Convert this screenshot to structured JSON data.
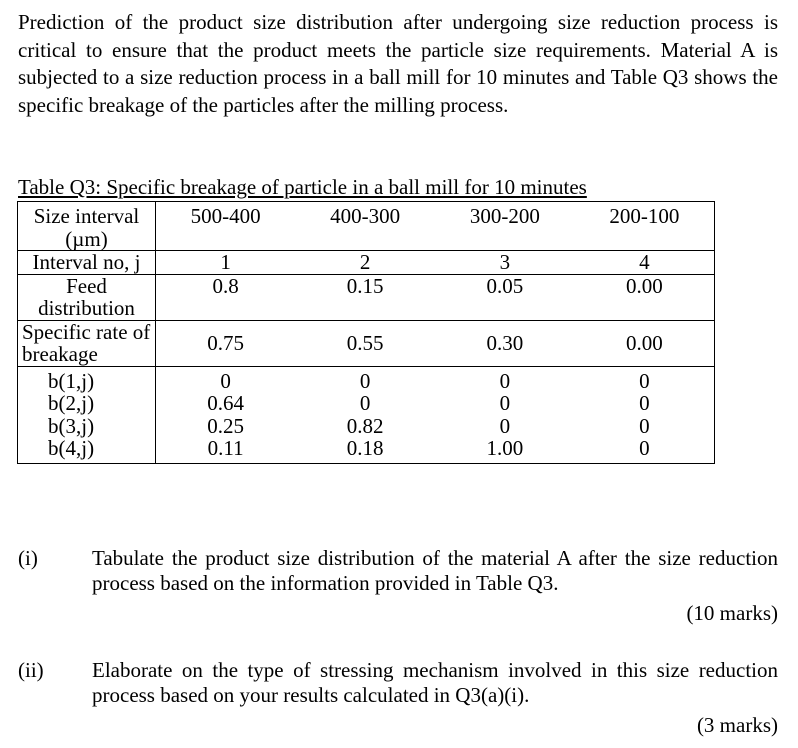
{
  "intro": "Prediction of the product size distribution after undergoing size reduction process is critical to ensure that the product meets the particle size requirements. Material A is subjected to a size reduction process in a ball mill for 10 minutes and Table Q3 shows the specific breakage of the particles after the milling process.",
  "table": {
    "caption": "Table Q3: Specific breakage of particle in a ball mill for 10 minutes",
    "header_label": "Size interval (µm)",
    "header_values": [
      "500-400",
      "400-300",
      "300-200",
      "200-100"
    ],
    "rows": [
      {
        "label": "Interval no, j",
        "values": [
          "1",
          "2",
          "3",
          "4"
        ]
      },
      {
        "label": "Feed distribution",
        "values": [
          "0.8",
          "0.15",
          "0.05",
          "0.00"
        ]
      },
      {
        "label": "Specific rate of breakage",
        "values": [
          "0.75",
          "0.55",
          "0.30",
          "0.00"
        ]
      },
      {
        "label": "b(1,j)",
        "values": [
          "0",
          "0",
          "0",
          "0"
        ]
      },
      {
        "label": "b(2,j)",
        "values": [
          "0.64",
          "0",
          "0",
          "0"
        ]
      },
      {
        "label": "b(3,j)",
        "values": [
          "0.25",
          "0.82",
          "0",
          "0"
        ]
      },
      {
        "label": "b(4,j)",
        "values": [
          "0.11",
          "0.18",
          "1.00",
          "0"
        ]
      }
    ]
  },
  "questions": [
    {
      "number": "(i)",
      "text": "Tabulate the product size distribution of the material A after the size reduction process based on the information provided in Table Q3.",
      "marks": "(10 marks)"
    },
    {
      "number": "(ii)",
      "text": "Elaborate on the type of stressing mechanism involved in this size reduction process based on your results calculated in Q3(a)(i).",
      "marks": "(3 marks)"
    }
  ]
}
